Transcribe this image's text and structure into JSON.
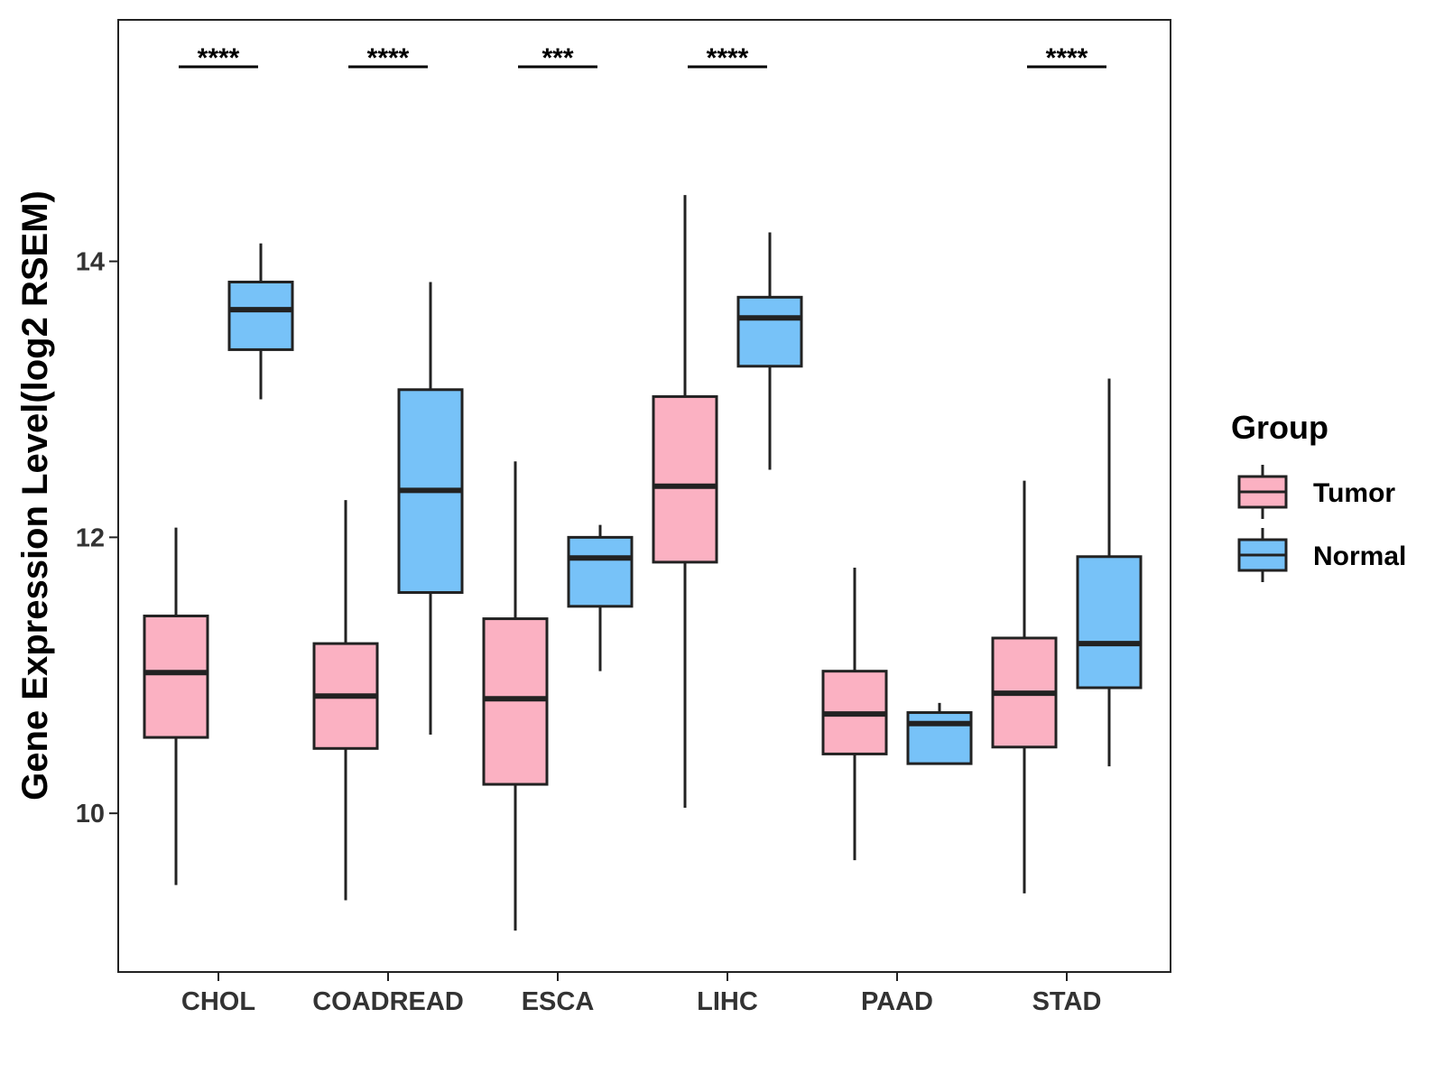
{
  "chart_data": {
    "type": "boxplot",
    "title": "",
    "xlabel": "",
    "ylabel": "Gene Expression Level(log2 RSEM)",
    "ylim": [
      8.85,
      15.75
    ],
    "yticks": [
      10,
      12,
      14
    ],
    "categories": [
      "CHOL",
      "COADREAD",
      "ESCA",
      "LIHC",
      "PAAD",
      "STAD"
    ],
    "series": [
      {
        "name": "Tumor",
        "color": "#FBB1C2",
        "boxes": [
          {
            "min": 9.48,
            "q1": 10.55,
            "median": 11.02,
            "q3": 11.43,
            "max": 12.07
          },
          {
            "min": 9.37,
            "q1": 10.47,
            "median": 10.85,
            "q3": 11.23,
            "max": 12.27
          },
          {
            "min": 9.15,
            "q1": 10.21,
            "median": 10.83,
            "q3": 11.41,
            "max": 12.55
          },
          {
            "min": 10.04,
            "q1": 11.82,
            "median": 12.37,
            "q3": 13.02,
            "max": 14.48
          },
          {
            "min": 9.66,
            "q1": 10.43,
            "median": 10.72,
            "q3": 11.03,
            "max": 11.78
          },
          {
            "min": 9.42,
            "q1": 10.48,
            "median": 10.87,
            "q3": 11.27,
            "max": 12.41
          }
        ]
      },
      {
        "name": "Normal",
        "color": "#77C2F8",
        "boxes": [
          {
            "min": 13.0,
            "q1": 13.36,
            "median": 13.65,
            "q3": 13.85,
            "max": 14.13
          },
          {
            "min": 10.57,
            "q1": 11.6,
            "median": 12.34,
            "q3": 13.07,
            "max": 13.85
          },
          {
            "min": 11.03,
            "q1": 11.5,
            "median": 11.85,
            "q3": 12.0,
            "max": 12.09
          },
          {
            "min": 12.49,
            "q1": 13.24,
            "median": 13.59,
            "q3": 13.74,
            "max": 14.21
          },
          {
            "min": 10.36,
            "q1": 10.36,
            "median": 10.65,
            "q3": 10.73,
            "max": 10.8
          },
          {
            "min": 10.34,
            "q1": 10.91,
            "median": 11.23,
            "q3": 11.86,
            "max": 13.15
          }
        ]
      }
    ],
    "significance": [
      "****",
      "****",
      "***",
      "****",
      "",
      "****"
    ],
    "legend": {
      "title": "Group",
      "entries": [
        "Tumor",
        "Normal"
      ],
      "placement": "right"
    },
    "grid": false
  }
}
